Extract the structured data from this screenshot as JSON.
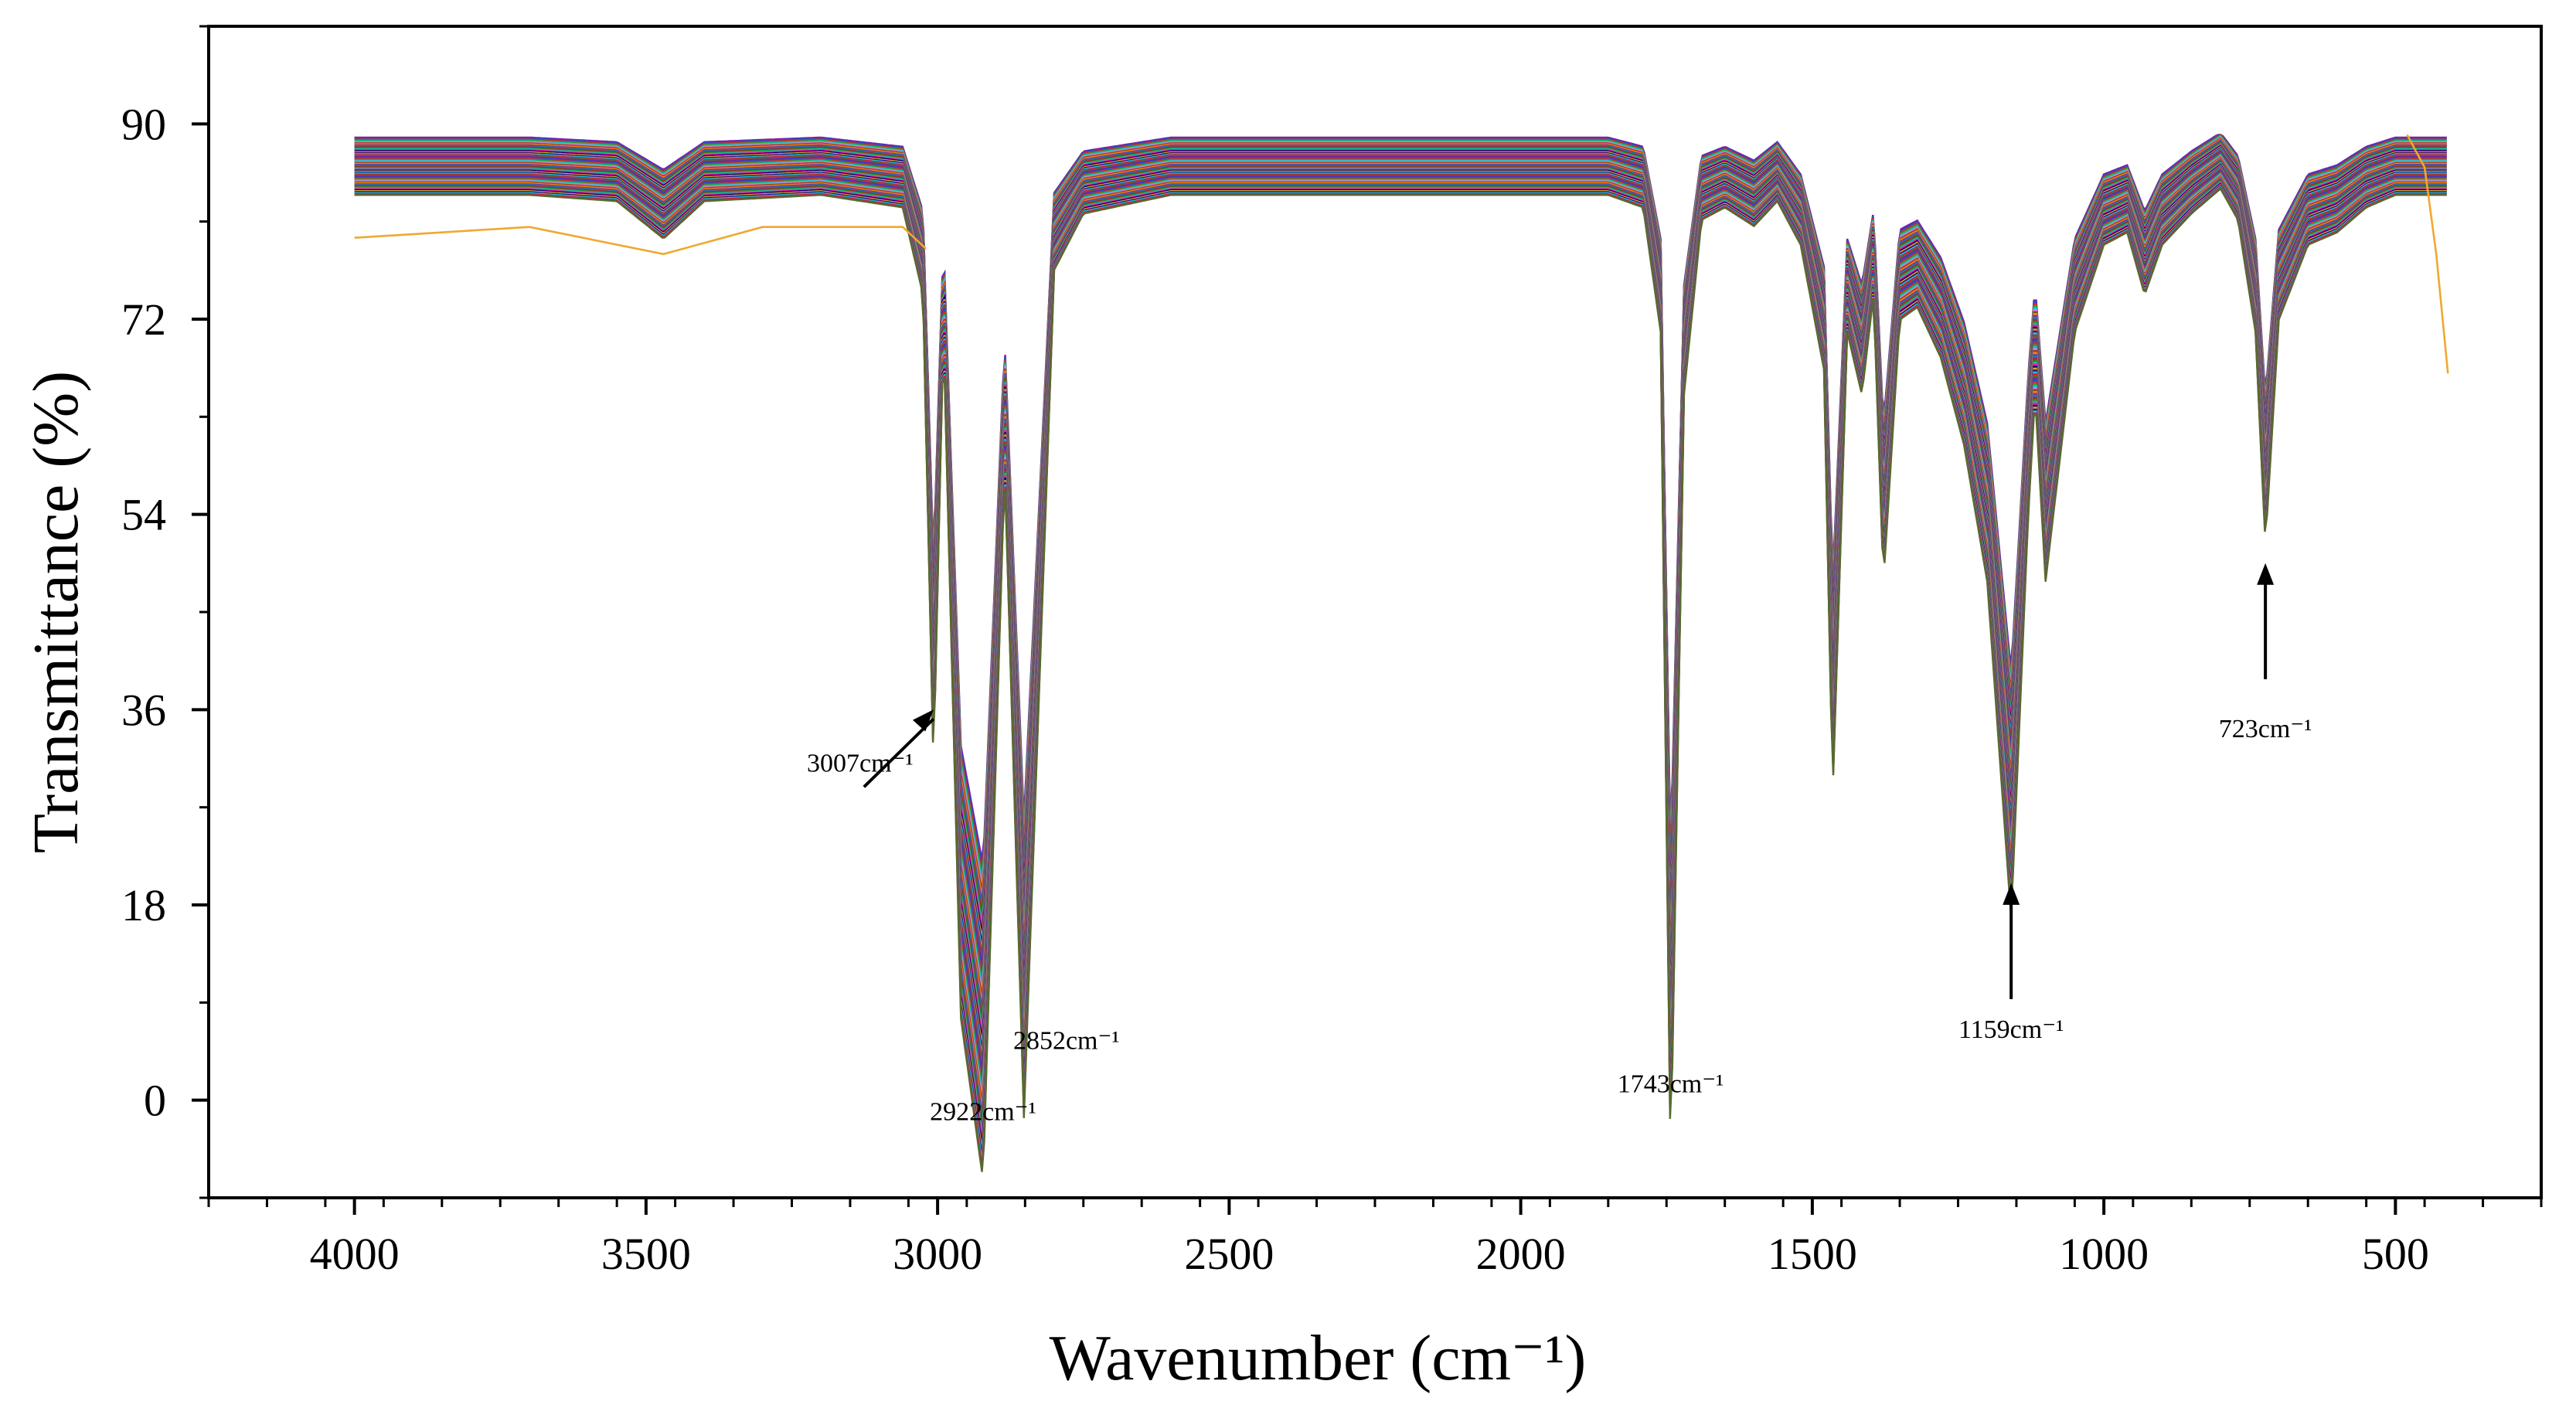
{
  "chart_data": {
    "type": "line",
    "title": "",
    "xlabel": "Wavenumber (cm⁻¹)",
    "ylabel": "Transmittance (%)",
    "xlim": [
      4250,
      250
    ],
    "ylim": [
      -9,
      99
    ],
    "x_reversed": true,
    "x_ticks": [
      4000,
      3500,
      3000,
      2500,
      2000,
      1500,
      1000,
      500
    ],
    "x_tick_labels": [
      "4000",
      "3500",
      "3000",
      "2500",
      "2000",
      "1500",
      "1000",
      "500"
    ],
    "y_ticks": [
      0,
      18,
      36,
      54,
      72,
      90
    ],
    "y_tick_labels": [
      "0",
      "18",
      "36",
      "54",
      "72",
      "90"
    ],
    "grid": false,
    "legend": "none",
    "series_count": 60,
    "representative_spectrum": {
      "x": [
        4000,
        3700,
        3550,
        3470,
        3400,
        3200,
        3060,
        3025,
        3007,
        2990,
        2960,
        2922,
        2885,
        2852,
        2800,
        2750,
        2600,
        2000,
        1850,
        1790,
        1760,
        1743,
        1720,
        1690,
        1650,
        1600,
        1560,
        1520,
        1480,
        1465,
        1440,
        1415,
        1395,
        1378,
        1350,
        1320,
        1280,
        1240,
        1200,
        1159,
        1130,
        1118,
        1100,
        1050,
        1000,
        960,
        930,
        900,
        850,
        800,
        770,
        740,
        723,
        700,
        650,
        600,
        550,
        500,
        450,
        410
      ],
      "y": [
        86.0,
        86.0,
        85.5,
        82.5,
        85.5,
        86.0,
        85.0,
        78.0,
        40.0,
        75.0,
        20.0,
        7.0,
        64.0,
        12.0,
        80.0,
        84.5,
        86.0,
        86.0,
        86.0,
        85.0,
        75.0,
        8.0,
        70.0,
        84.0,
        85.0,
        83.5,
        85.5,
        82.0,
        72.0,
        38.0,
        75.0,
        70.0,
        78.0,
        55.0,
        76.0,
        77.0,
        73.0,
        66.0,
        55.0,
        28.0,
        60.0,
        70.0,
        55.0,
        75.0,
        82.0,
        83.0,
        78.0,
        82.0,
        84.5,
        86.5,
        84.0,
        75.0,
        58.0,
        76.0,
        82.0,
        83.0,
        85.0,
        86.0,
        86.0,
        86.0
      ]
    },
    "outlier_spectrum": {
      "x": [
        4000,
        3700,
        3470,
        3300,
        3060,
        3020
      ],
      "y": [
        79.5,
        80.5,
        78.0,
        80.5,
        80.5,
        78.5
      ]
    },
    "outlier_tail": {
      "x": [
        480,
        450,
        430,
        410
      ],
      "y": [
        89.0,
        86.0,
        78.0,
        67.0
      ]
    },
    "annotations": [
      {
        "text": "3007cm⁻¹",
        "peak_x": 3007,
        "peak_y": 36.0,
        "arrow": true
      },
      {
        "text": "2922cm⁻¹",
        "peak_x": 2922,
        "peak_y": 3.5,
        "arrow": false
      },
      {
        "text": "2852cm⁻¹",
        "peak_x": 2852,
        "peak_y": 9.0,
        "arrow": false
      },
      {
        "text": "1743cm⁻¹",
        "peak_x": 1743,
        "peak_y": 5.0,
        "arrow": false
      },
      {
        "text": "1159cm⁻¹",
        "peak_x": 1159,
        "peak_y": 20.0,
        "arrow": true
      },
      {
        "text": "723cm⁻¹",
        "peak_x": 723,
        "peak_y": 49.5,
        "arrow": true
      }
    ],
    "palette": [
      "#7a1fa2",
      "#1f4fd6",
      "#d62728",
      "#2ca02c",
      "#17becf",
      "#e377c2",
      "#8b4513",
      "#ff7f0e",
      "#6a3d9a",
      "#1f77b4",
      "#b22222",
      "#228b22",
      "#20b2aa",
      "#ff1493",
      "#000080",
      "#daa520",
      "#4b0082",
      "#00ced1",
      "#dc143c",
      "#556b2f"
    ],
    "outlier_color": "#f0a830"
  }
}
